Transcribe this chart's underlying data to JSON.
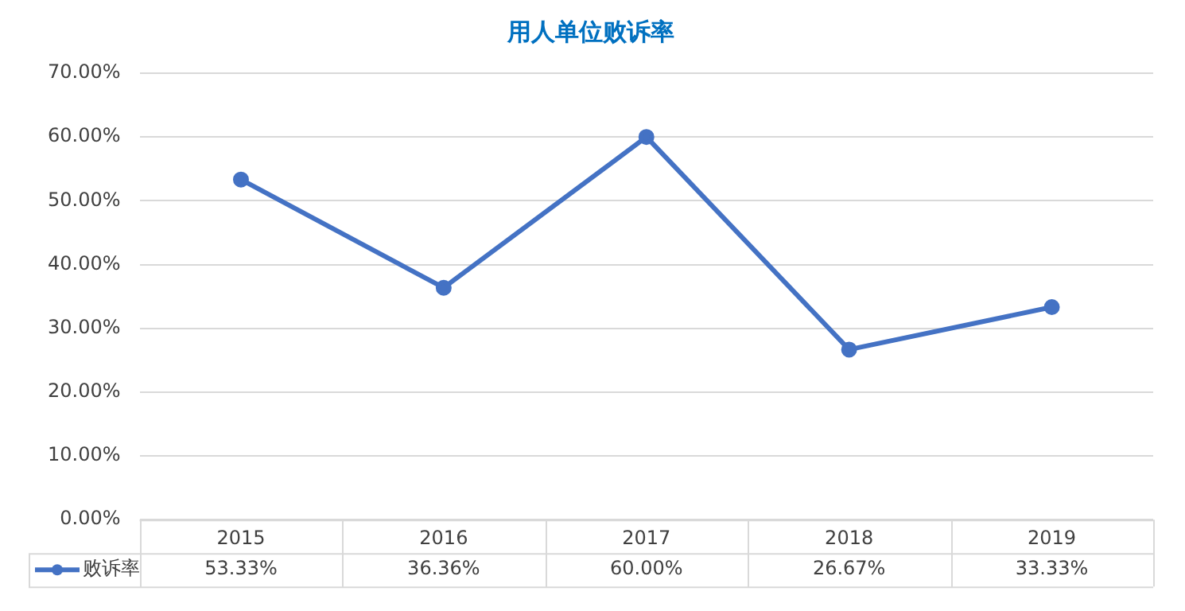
{
  "chart_data": {
    "type": "line",
    "title": "用人单位败诉率",
    "categories": [
      "2015",
      "2016",
      "2017",
      "2018",
      "2019"
    ],
    "series": [
      {
        "name": "败诉率",
        "color": "#4472c4",
        "values": [
          53.33,
          36.36,
          60.0,
          26.67,
          33.33
        ],
        "value_labels": [
          "53.33%",
          "36.36%",
          "60.00%",
          "26.67%",
          "33.33%"
        ]
      }
    ],
    "ylim": [
      0,
      70
    ],
    "yticks": [
      {
        "value": 0,
        "label": "0.00%"
      },
      {
        "value": 10,
        "label": "10.00%"
      },
      {
        "value": 20,
        "label": "20.00%"
      },
      {
        "value": 30,
        "label": "30.00%"
      },
      {
        "value": 40,
        "label": "40.00%"
      },
      {
        "value": 50,
        "label": "50.00%"
      },
      {
        "value": 60,
        "label": "60.00%"
      },
      {
        "value": 70,
        "label": "70.00%"
      }
    ],
    "grid": "y",
    "legend": "bottom left",
    "marker": "circle",
    "line_style": "solid"
  }
}
